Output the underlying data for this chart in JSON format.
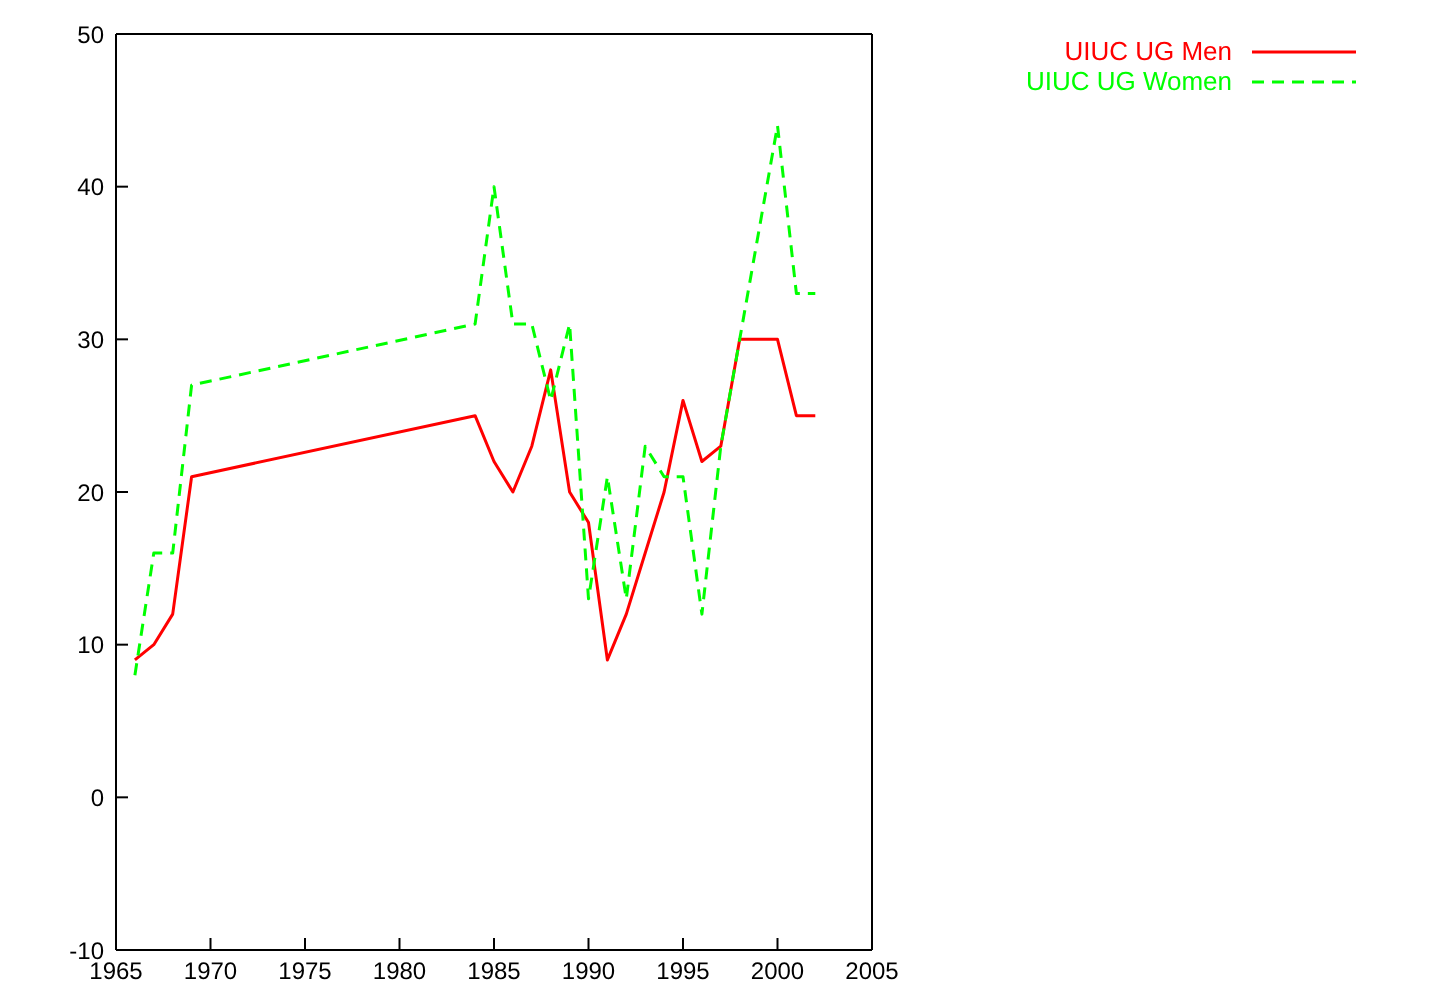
{
  "chart_data": {
    "type": "line",
    "x": [
      1966,
      1967,
      1968,
      1969,
      1984,
      1985,
      1986,
      1987,
      1988,
      1989,
      1990,
      1991,
      1992,
      1993,
      1994,
      1995,
      1996,
      1997,
      1998,
      1999,
      2000,
      2001,
      2002
    ],
    "series": [
      {
        "name": "UIUC UG Men",
        "color": "#ff0000",
        "line_style": "solid",
        "values": [
          9,
          10,
          12,
          21,
          25,
          22,
          20,
          23,
          28,
          20,
          18,
          9,
          12,
          16,
          20,
          26,
          22,
          23,
          30,
          30,
          30,
          25,
          25
        ]
      },
      {
        "name": "UIUC UG Women",
        "color": "#00ff00",
        "line_style": "dashed",
        "values": [
          8,
          16,
          16,
          27,
          31,
          40,
          31,
          31,
          26,
          31,
          13,
          21,
          13,
          23,
          21,
          21,
          12,
          23,
          30,
          37,
          44,
          33,
          33
        ]
      }
    ],
    "xlim": [
      1965,
      2005
    ],
    "xticks": [
      1965,
      1970,
      1975,
      1980,
      1985,
      1990,
      1995,
      2000,
      2005
    ],
    "ylim": [
      -10,
      50
    ],
    "yticks": [
      -10,
      0,
      10,
      20,
      30,
      40,
      50
    ],
    "grid": false,
    "legend": "top right",
    "marker": "none"
  }
}
